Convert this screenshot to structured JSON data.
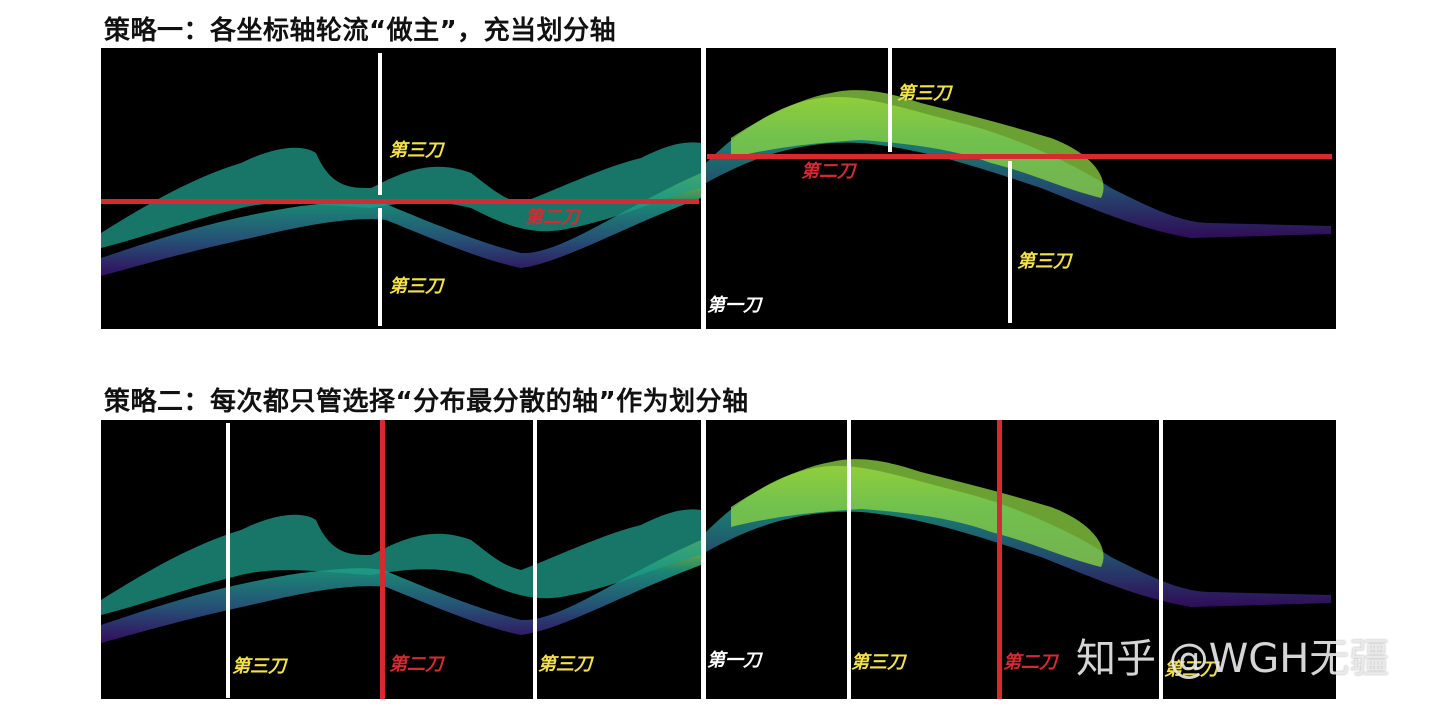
{
  "strategy1": {
    "title": "策略一：各坐标轴轮流“做主”，充当划分轴",
    "labels": {
      "cut1": "第一刀",
      "cut2a": "第二刀",
      "cut2b": "第二刀",
      "cut3a": "第三刀",
      "cut3b": "第三刀",
      "cut3c": "第三刀",
      "cut3d": "第三刀"
    }
  },
  "strategy2": {
    "title": "策略二：每次都只管选择“分布最分散的轴”作为划分轴",
    "labels": {
      "cut1": "第一刀",
      "cut2a": "第二刀",
      "cut2b": "第二刀",
      "cut3a": "第三刀",
      "cut3b": "第三刀",
      "cut3c": "第三刀",
      "cut3d": "第三刀"
    }
  },
  "watermark": "知乎 @WGH无疆",
  "colors": {
    "first_cut": "#ffffff",
    "second_cut": "#d62a33",
    "third_cut": "#ffffff",
    "label_first": "#ffffff",
    "label_second": "#d62a33",
    "label_third": "#f2e14a"
  }
}
